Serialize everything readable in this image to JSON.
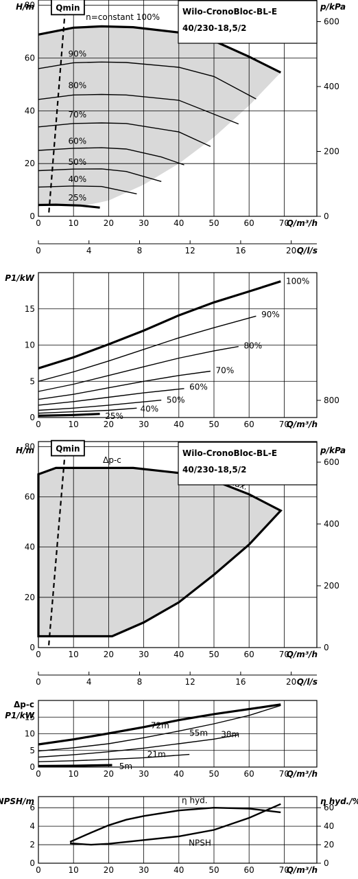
{
  "chart_data": [
    {
      "type": "line",
      "id": "head-speed",
      "title": "Wilo-CronoBloc-BL-E 40/230-18,5/2",
      "title_lines": [
        "Wilo-CronoBloc-BL-E",
        "40/230-18,5/2"
      ],
      "ylabel": "H/m",
      "y2label": "p/kPa",
      "xlabel": "Q/m³/h",
      "x2label": "Q/l/s",
      "xlim": [
        0,
        72
      ],
      "ylim": [
        0,
        82
      ],
      "xticks": [
        0,
        10,
        20,
        30,
        40,
        50,
        60,
        70
      ],
      "yticks": [
        0,
        20,
        40,
        60,
        80
      ],
      "y2ticks": [
        0,
        200,
        400,
        600,
        800
      ],
      "x2ticks": [
        0,
        4,
        8,
        12,
        16,
        20
      ],
      "qmin_label": "Qmin",
      "operating_area_color": "#d9d9d9",
      "series": [
        {
          "name": "n=constant 100%",
          "bold": true,
          "x": [
            0,
            10,
            18,
            27,
            40,
            50,
            60,
            69
          ],
          "y": [
            68.9,
            71.5,
            72.0,
            71.7,
            69.7,
            66.5,
            60.5,
            54.5
          ]
        },
        {
          "name": "90%",
          "x": [
            0,
            10,
            18,
            25,
            40,
            50,
            62
          ],
          "y": [
            56.0,
            58.2,
            58.5,
            58.3,
            56.5,
            53.0,
            44.5
          ]
        },
        {
          "name": "80%",
          "x": [
            0,
            10,
            18,
            25,
            40,
            57
          ],
          "y": [
            44.3,
            46.0,
            46.2,
            46.0,
            44.0,
            35.0
          ]
        },
        {
          "name": "70%",
          "x": [
            0,
            10,
            18,
            25,
            40,
            49
          ],
          "y": [
            33.9,
            35.2,
            35.4,
            35.2,
            32.0,
            26.5
          ]
        },
        {
          "name": "60%",
          "x": [
            0,
            10,
            18,
            25,
            35,
            41.5
          ],
          "y": [
            25.0,
            25.8,
            26.0,
            25.5,
            22.5,
            19.5
          ]
        },
        {
          "name": "50%",
          "x": [
            0,
            10,
            18,
            25,
            35
          ],
          "y": [
            17.3,
            17.9,
            18.0,
            17.0,
            13.2
          ]
        },
        {
          "name": "40%",
          "x": [
            0,
            10,
            18,
            28
          ],
          "y": [
            11.1,
            11.5,
            11.3,
            8.5
          ]
        },
        {
          "name": "25%",
          "bold": true,
          "x": [
            0,
            5,
            12,
            17.5
          ],
          "y": [
            4.3,
            4.4,
            4.1,
            3.3
          ]
        }
      ],
      "qmin_line": {
        "x": [
          7.6,
          2.9
        ],
        "y": [
          78,
          0
        ]
      },
      "operating_area_boundary": {
        "x": [
          0,
          10,
          18,
          27,
          40,
          50,
          60,
          69,
          60,
          50,
          40,
          30,
          20,
          14,
          10,
          5,
          0
        ],
        "y": [
          68.9,
          71.5,
          72.0,
          71.7,
          69.7,
          66.5,
          60.5,
          54.5,
          42,
          30,
          20,
          12,
          6,
          4.3,
          4.4,
          4.4,
          4.3
        ]
      }
    },
    {
      "type": "line",
      "id": "power-speed",
      "ylabel": "P1/kW",
      "xlabel": "Q/m³/h",
      "xlim": [
        0,
        72
      ],
      "ylim": [
        0,
        20
      ],
      "xticks": [
        0,
        10,
        20,
        30,
        40,
        50,
        60,
        70
      ],
      "yticks": [
        0,
        5,
        10,
        15
      ],
      "series": [
        {
          "name": "100%",
          "bold": true,
          "x": [
            0,
            10,
            20,
            30,
            40,
            50,
            60,
            69
          ],
          "y": [
            6.8,
            8.3,
            10.1,
            12.0,
            14.1,
            15.9,
            17.4,
            18.8
          ]
        },
        {
          "name": "90%",
          "x": [
            0,
            10,
            20,
            30,
            40,
            50,
            62
          ],
          "y": [
            5.0,
            6.3,
            7.8,
            9.4,
            11.0,
            12.4,
            14.0
          ]
        },
        {
          "name": "80%",
          "x": [
            0,
            10,
            20,
            30,
            40,
            50,
            57
          ],
          "y": [
            3.6,
            4.6,
            5.8,
            7.0,
            8.2,
            9.2,
            9.8
          ]
        },
        {
          "name": "70%",
          "x": [
            0,
            10,
            20,
            30,
            40,
            49
          ],
          "y": [
            2.5,
            3.2,
            4.1,
            5.0,
            5.8,
            6.4
          ]
        },
        {
          "name": "60%",
          "x": [
            0,
            10,
            20,
            30,
            41.5
          ],
          "y": [
            1.7,
            2.2,
            2.8,
            3.4,
            4.0
          ]
        },
        {
          "name": "50%",
          "x": [
            0,
            10,
            20,
            35
          ],
          "y": [
            1.0,
            1.3,
            1.7,
            2.4
          ]
        },
        {
          "name": "40%",
          "x": [
            0,
            10,
            20,
            28
          ],
          "y": [
            0.6,
            0.8,
            1.0,
            1.3
          ]
        },
        {
          "name": "25%",
          "bold": true,
          "x": [
            0,
            10,
            17.5
          ],
          "y": [
            0.25,
            0.35,
            0.5
          ]
        }
      ]
    },
    {
      "type": "line",
      "id": "head-dpc",
      "title": "Wilo-CronoBloc-BL-E 40/230-18,5/2",
      "title_lines": [
        "Wilo-CronoBloc-BL-E",
        "40/230-18,5/2"
      ],
      "ylabel": "H/m",
      "y2label": "p/kPa",
      "xlabel": "Q/m³/h",
      "x2label": "Q/l/s",
      "xlim": [
        0,
        72
      ],
      "ylim": [
        0,
        82
      ],
      "xticks": [
        0,
        10,
        20,
        30,
        40,
        50,
        60,
        70
      ],
      "yticks": [
        0,
        20,
        40,
        60,
        80
      ],
      "y2ticks": [
        0,
        200,
        400,
        600,
        800
      ],
      "x2ticks": [
        0,
        4,
        8,
        12,
        16,
        20
      ],
      "qmin_label": "Qmin",
      "dpc_label": "Δp-c",
      "max_label": "max.",
      "operating_area_color": "#d9d9d9",
      "boundary": {
        "x": [
          0,
          5,
          10,
          20,
          27,
          40,
          50,
          60,
          69,
          60,
          50,
          40,
          30,
          21,
          10,
          0
        ],
        "y": [
          69,
          71.5,
          71.5,
          71.5,
          71.5,
          69.5,
          66.5,
          61,
          54.5,
          41,
          29,
          18,
          10,
          4.5,
          4.5,
          4.5
        ]
      },
      "qmin_line": {
        "x": [
          7.6,
          2.9
        ],
        "y": [
          78,
          0
        ]
      }
    },
    {
      "type": "line",
      "id": "power-dpc",
      "ylabel_lines": [
        "Δp-c",
        "P1/kW"
      ],
      "xlabel": "Q/m³/h",
      "x2label": "Q/l/s",
      "xlim": [
        0,
        72
      ],
      "ylim": [
        0,
        20
      ],
      "xticks": [
        0,
        10,
        20,
        30,
        40,
        50,
        60,
        70
      ],
      "yticks": [
        0,
        5,
        10,
        15
      ],
      "x2ticks": [
        0,
        4,
        8,
        12,
        16,
        20
      ],
      "series": [
        {
          "name": "72m",
          "bold": true,
          "x": [
            0,
            10,
            20,
            30,
            40,
            50,
            60,
            69
          ],
          "y": [
            6.8,
            8.3,
            10.1,
            12.0,
            14.1,
            15.9,
            17.4,
            18.8
          ]
        },
        {
          "name": "55m",
          "x": [
            0,
            10,
            20,
            30,
            40,
            50,
            60,
            69
          ],
          "y": [
            4.8,
            5.8,
            7.0,
            8.8,
            10.8,
            13.0,
            15.5,
            18.5
          ]
        },
        {
          "name": "38m",
          "x": [
            0,
            10,
            20,
            30,
            40,
            50,
            57
          ],
          "y": [
            3.0,
            3.7,
            4.6,
            5.7,
            7.0,
            8.4,
            9.7
          ]
        },
        {
          "name": "21m",
          "x": [
            0,
            10,
            20,
            30,
            43
          ],
          "y": [
            1.6,
            1.9,
            2.3,
            2.8,
            3.8
          ]
        },
        {
          "name": "5m",
          "bold": true,
          "x": [
            0,
            10,
            21
          ],
          "y": [
            0.3,
            0.4,
            0.6
          ]
        }
      ]
    },
    {
      "type": "line",
      "id": "npsh-eff",
      "ylabel": "NPSH/m",
      "y2label": "η hyd./%",
      "xlabel": "Q/m³/h",
      "xlim": [
        0,
        72
      ],
      "ylim": [
        0,
        7.2
      ],
      "xticks": [
        0,
        10,
        20,
        30,
        40,
        50,
        60,
        70
      ],
      "yticks": [
        0,
        2,
        4,
        6
      ],
      "y2ticks": [
        0,
        20,
        40,
        60
      ],
      "series": [
        {
          "name": "η hyd.",
          "x": [
            9,
            15,
            20,
            25,
            30,
            40,
            50,
            60,
            69
          ],
          "y": [
            2.3,
            3.3,
            4.1,
            4.7,
            5.1,
            5.7,
            6.0,
            5.9,
            5.5
          ]
        },
        {
          "name": "NPSH",
          "x": [
            9,
            15,
            20,
            30,
            40,
            50,
            60,
            69
          ],
          "y": [
            2.15,
            2.0,
            2.1,
            2.5,
            2.9,
            3.6,
            4.9,
            6.4
          ]
        }
      ]
    }
  ]
}
